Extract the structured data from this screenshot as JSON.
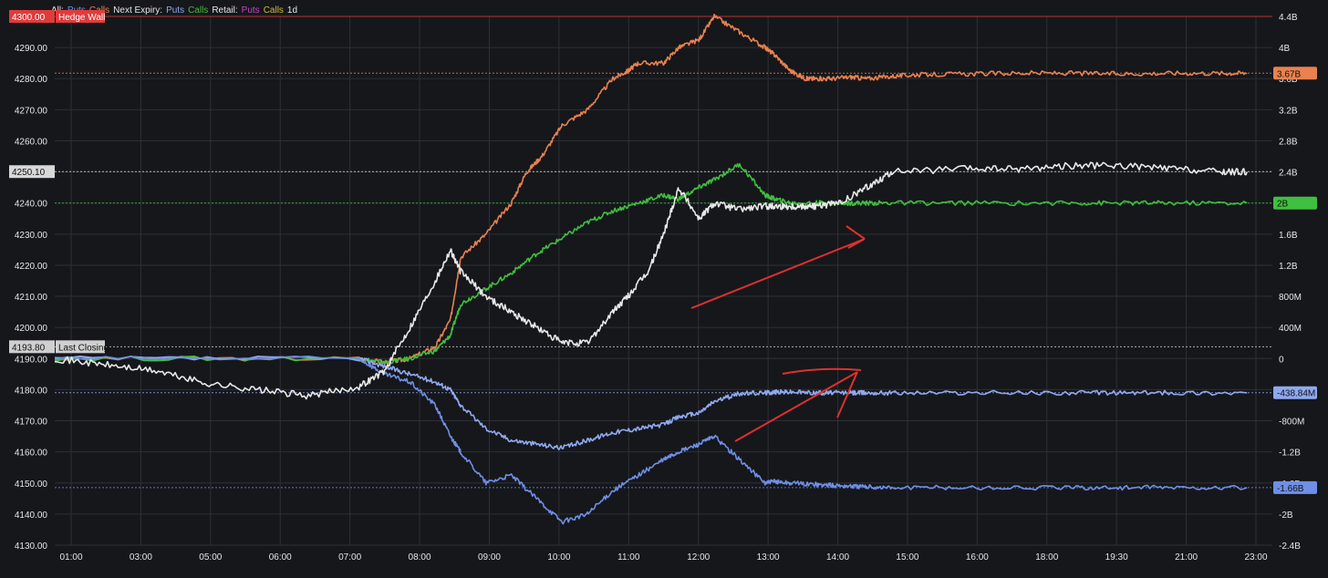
{
  "legend": {
    "items": [
      {
        "text": "All:",
        "color": "#e6e6e6"
      },
      {
        "text": "Puts",
        "color": "#6f8fe6"
      },
      {
        "text": "Calls",
        "color": "#e9824f"
      },
      {
        "text": "Next Expiry:",
        "color": "#e6e6e6"
      },
      {
        "text": "Puts",
        "color": "#8fa9ef"
      },
      {
        "text": "Calls",
        "color": "#3fbf3f"
      },
      {
        "text": "Retail:",
        "color": "#e6e6e6"
      },
      {
        "text": "Puts",
        "color": "#c545c5"
      },
      {
        "text": "Calls",
        "color": "#d4b83c"
      },
      {
        "text": "1d",
        "color": "#e6e6e6"
      }
    ]
  },
  "chart_data": {
    "type": "line",
    "x_ticks": [
      "01:00",
      "03:00",
      "05:00",
      "06:00",
      "07:00",
      "08:00",
      "09:00",
      "10:00",
      "11:00",
      "12:00",
      "13:00",
      "14:00",
      "15:00",
      "16:00",
      "18:00",
      "19:30",
      "21:00",
      "23:00"
    ],
    "y_left_ticks": [
      "4290.00",
      "4280.00",
      "4270.00",
      "4260.00",
      "4250.00",
      "4240.00",
      "4230.00",
      "4220.00",
      "4210.00",
      "4200.00",
      "4190.00",
      "4180.00",
      "4170.00",
      "4160.00",
      "4150.00",
      "4140.00",
      "4130.00"
    ],
    "y_left_range": [
      4130,
      4300
    ],
    "y_right_ticks": [
      "4.4B",
      "4B",
      "3.6B",
      "3.2B",
      "2.8B",
      "2.4B",
      "2B",
      "1.6B",
      "1.2B",
      "800M",
      "400M",
      "0",
      "-400M",
      "-800M",
      "-1.2B",
      "-1.6B",
      "-2B",
      "-2.4B"
    ],
    "y_right_range": [
      -2400000000,
      4400000000
    ],
    "levels": [
      {
        "label": "4300.00",
        "tag": "Hedge Wall",
        "value": 4300,
        "color": "#e03b3b"
      },
      {
        "label": "4193.80",
        "tag": "Last Closing",
        "value": 4193.8,
        "color": "#cfcfcf"
      },
      {
        "label": "4250.10",
        "value": 4250.1,
        "color": "#d8d8d8"
      }
    ],
    "right_badges": [
      {
        "label": "3.67B",
        "value": 3670000000,
        "color": "#e9824f"
      },
      {
        "label": "2B",
        "value": 2000000000,
        "color": "#3fbf3f"
      },
      {
        "label": "-438.84M",
        "value": -438840000,
        "color": "#8fa9ef"
      },
      {
        "label": "-1.66B",
        "value": -1660000000,
        "color": "#6f8fe6"
      }
    ],
    "series": [
      {
        "color": "#e9824f",
        "axis": "right",
        "x": [
          0,
          6,
          6.5,
          7,
          7.5,
          7.8,
          8,
          8.5,
          9,
          9.3,
          9.6,
          10,
          10.5,
          11,
          11.3,
          11.5,
          12,
          12.3,
          12.7,
          13,
          13.5,
          14,
          14.2,
          14.5,
          14.8,
          15,
          15.3,
          15.7,
          16,
          16.5,
          17,
          18,
          19,
          20,
          21,
          22,
          23,
          23.5
        ],
        "y": [
          0,
          0,
          -0.05,
          0,
          0.15,
          0.5,
          1.3,
          1.6,
          2.0,
          2.4,
          2.6,
          3.0,
          3.2,
          3.6,
          3.7,
          3.8,
          3.8,
          4.0,
          4.1,
          4.4,
          4.2,
          4.0,
          3.9,
          3.7,
          3.6,
          3.6,
          3.6,
          3.62,
          3.6,
          3.63,
          3.65,
          3.66,
          3.67,
          3.67,
          3.66,
          3.67,
          3.67,
          3.67
        ]
      },
      {
        "color": "#3fbf3f",
        "axis": "right",
        "x": [
          0,
          6,
          6.5,
          7,
          7.5,
          7.8,
          8,
          8.5,
          9,
          9.5,
          10,
          10.5,
          11,
          11.5,
          12,
          12.3,
          12.7,
          13,
          13.5,
          14,
          14.2,
          14.5,
          15,
          15.3,
          15.7,
          16,
          16.5,
          18,
          20,
          21,
          22,
          23.5
        ],
        "y": [
          0,
          0,
          -0.05,
          0,
          0.1,
          0.3,
          0.7,
          0.9,
          1.1,
          1.35,
          1.55,
          1.75,
          1.9,
          2.0,
          2.1,
          2.05,
          2.2,
          2.3,
          2.5,
          2.1,
          2.05,
          2.0,
          2.0,
          2.0,
          2.0,
          2.0,
          2.0,
          2.0,
          2.0,
          2.0,
          2.0,
          2.0
        ]
      },
      {
        "color": "#8fa9ef",
        "axis": "right",
        "x": [
          0,
          6,
          6.5,
          7,
          7.5,
          7.8,
          8,
          8.5,
          9,
          9.5,
          10,
          10.5,
          11,
          11.5,
          12,
          12.3,
          12.7,
          13,
          13.5,
          14,
          14.2,
          14.5,
          15,
          15.3,
          15.7,
          16,
          16.5,
          18,
          20,
          21,
          22,
          23.5
        ],
        "y": [
          0,
          0,
          -0.1,
          -0.2,
          -0.3,
          -0.4,
          -0.6,
          -0.9,
          -1.05,
          -1.1,
          -1.15,
          -1.05,
          -0.95,
          -0.9,
          -0.85,
          -0.75,
          -0.7,
          -0.55,
          -0.45,
          -0.44,
          -0.43,
          -0.43,
          -0.44,
          -0.44,
          -0.44,
          -0.44,
          -0.44,
          -0.44,
          -0.44,
          -0.44,
          -0.44,
          -0.44
        ]
      },
      {
        "color": "#6f8fe6",
        "axis": "right",
        "x": [
          0,
          6,
          6.5,
          7,
          7.5,
          7.8,
          8,
          8.5,
          9,
          9.5,
          10,
          10.5,
          11,
          11.5,
          12,
          12.3,
          12.7,
          13,
          13.5,
          14,
          14.2,
          14.5,
          15,
          15.3,
          15.7,
          16,
          16.5,
          18,
          20,
          21,
          22,
          23.5
        ],
        "y": [
          0,
          0,
          -0.2,
          -0.3,
          -0.6,
          -1.0,
          -1.2,
          -1.6,
          -1.5,
          -1.8,
          -2.1,
          -2.0,
          -1.7,
          -1.5,
          -1.3,
          -1.2,
          -1.1,
          -1.0,
          -1.3,
          -1.6,
          -1.58,
          -1.6,
          -1.62,
          -1.63,
          -1.64,
          -1.65,
          -1.66,
          -1.66,
          -1.66,
          -1.66,
          -1.66,
          -1.66
        ]
      },
      {
        "color": "#e8e8e8",
        "axis": "left",
        "x": [
          0,
          1,
          2,
          3,
          4,
          5,
          6,
          6.5,
          7,
          7.5,
          7.8,
          8,
          8.5,
          9,
          9.5,
          10,
          10.5,
          11,
          11.3,
          11.7,
          12,
          12.3,
          12.7,
          13,
          13.5,
          14,
          14.2,
          14.5,
          14.8,
          15,
          15.5,
          16,
          16.5,
          18,
          19,
          20,
          21,
          22,
          23,
          23.5
        ],
        "y": [
          4190,
          4188,
          4186,
          4182,
          4180,
          4178,
          4181,
          4186,
          4200,
          4215,
          4225,
          4218,
          4210,
          4205,
          4200,
          4195,
          4195,
          4205,
          4210,
          4218,
          4230,
          4245,
          4235,
          4240,
          4238,
          4239,
          4239,
          4239,
          4239,
          4239,
          4240,
          4245,
          4250,
          4251,
          4251,
          4252,
          4252,
          4251,
          4250,
          4250
        ]
      }
    ]
  }
}
